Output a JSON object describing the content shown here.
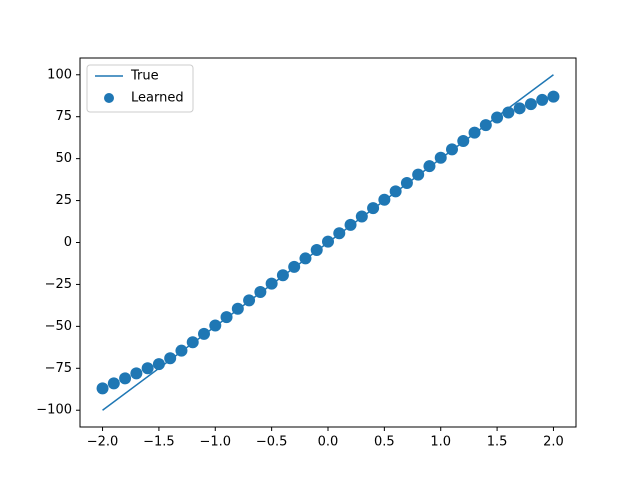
{
  "chart_data": {
    "type": "line",
    "xlim": [
      -2.2,
      2.2
    ],
    "ylim": [
      -110,
      110
    ],
    "xticks": [
      {
        "value": -2.0,
        "label": "−2.0"
      },
      {
        "value": -1.5,
        "label": "−1.5"
      },
      {
        "value": -1.0,
        "label": "−1.0"
      },
      {
        "value": -0.5,
        "label": "−0.5"
      },
      {
        "value": 0,
        "label": "0.0"
      },
      0.5,
      {
        "value": 1,
        "label": "1.0"
      },
      1.5,
      {
        "value": 2,
        "label": "2.0"
      }
    ],
    "yticks": [
      {
        "value": -100,
        "label": "−100"
      },
      {
        "value": -75,
        "label": "−75"
      },
      {
        "value": -50,
        "label": "−50"
      },
      {
        "value": -25,
        "label": "−25"
      },
      0,
      25,
      50,
      75,
      100
    ],
    "legend": "upper left",
    "series": [
      {
        "name": "True",
        "type": "line",
        "color": "#1f77b4",
        "x": [
          -2,
          2
        ],
        "values": [
          -100,
          100
        ]
      },
      {
        "name": "Learned",
        "type": "scatter",
        "color": "#1f77b4",
        "x": [
          -2.0,
          -1.9,
          -1.8,
          -1.7,
          -1.6,
          -1.5,
          -1.4,
          -1.3,
          -1.2,
          -1.1,
          -1.0,
          -0.9,
          -0.8,
          -0.7,
          -0.6,
          -0.5,
          -0.4,
          -0.3,
          -0.2,
          -0.1,
          0.0,
          0.1,
          0.2,
          0.3,
          0.4,
          0.5,
          0.6,
          0.7,
          0.8,
          0.9,
          1.0,
          1.1,
          1.2,
          1.3,
          1.4,
          1.5,
          1.6,
          1.7,
          1.8,
          1.9,
          2.0
        ],
        "values": [
          -87,
          -84,
          -81,
          -78,
          -75,
          -72.5,
          -69,
          -64.5,
          -59.5,
          -54.5,
          -49.5,
          -44.5,
          -39.5,
          -34.5,
          -29.5,
          -24.5,
          -19.5,
          -14.5,
          -9.5,
          -4.5,
          0.5,
          5.5,
          10.5,
          15.5,
          20.5,
          25.5,
          30.5,
          35.5,
          40.5,
          45.5,
          50.5,
          55.5,
          60.5,
          65.5,
          70,
          74.5,
          77.5,
          80,
          82.5,
          85,
          87
        ]
      }
    ]
  }
}
